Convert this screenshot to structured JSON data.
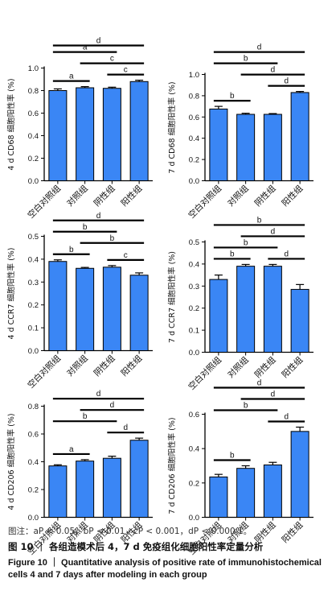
{
  "chart_data": [
    {
      "type": "bar",
      "ylabel": "4 d CD68 细胞阳性率 (%)",
      "categories": [
        "空白对照组",
        "对照组",
        "阴性组",
        "阳性组"
      ],
      "values": [
        0.8,
        0.825,
        0.82,
        0.88
      ],
      "errors": [
        0.015,
        0.01,
        0.01,
        0.012
      ],
      "ylim": [
        0,
        1.0
      ],
      "yticks": [
        "0.0",
        "0.2",
        "0.4",
        "0.6",
        "0.8",
        "1.0"
      ],
      "brackets": [
        {
          "from": 0,
          "to": 1,
          "label": "a"
        },
        {
          "from": 2,
          "to": 3,
          "label": "c"
        },
        {
          "from": 1,
          "to": 3,
          "label": "c"
        },
        {
          "from": 0,
          "to": 2,
          "label": "a"
        },
        {
          "from": 0,
          "to": 3,
          "label": "d"
        }
      ]
    },
    {
      "type": "bar",
      "ylabel": "7 d CD68 细胞阳性率 (%)",
      "categories": [
        "空白对照组",
        "对照组",
        "阴性组",
        "阳性组"
      ],
      "values": [
        0.675,
        0.625,
        0.625,
        0.83
      ],
      "errors": [
        0.025,
        0.01,
        0.007,
        0.01
      ],
      "ylim": [
        0,
        1.0
      ],
      "yticks": [
        "0.0",
        "0.2",
        "0.4",
        "0.6",
        "0.8",
        "1.0"
      ],
      "brackets": [
        {
          "from": 0,
          "to": 1,
          "label": "b"
        },
        {
          "from": 2,
          "to": 3,
          "label": "d"
        },
        {
          "from": 1,
          "to": 3,
          "label": "d"
        },
        {
          "from": 0,
          "to": 2,
          "label": "b"
        },
        {
          "from": 0,
          "to": 3,
          "label": "d"
        }
      ]
    },
    {
      "type": "bar",
      "ylabel": "4 d CCR7 细胞阳性率 (%)",
      "categories": [
        "空白对照组",
        "对照组",
        "阴性组",
        "阳性组"
      ],
      "values": [
        0.39,
        0.36,
        0.365,
        0.33
      ],
      "errors": [
        0.007,
        0.004,
        0.007,
        0.01
      ],
      "ylim": [
        0,
        0.5
      ],
      "yticks": [
        "0.0",
        "0.1",
        "0.2",
        "0.3",
        "0.4",
        "0.5"
      ],
      "brackets": [
        {
          "from": 0,
          "to": 1,
          "label": "b"
        },
        {
          "from": 2,
          "to": 3,
          "label": "c"
        },
        {
          "from": 1,
          "to": 3,
          "label": "b"
        },
        {
          "from": 0,
          "to": 2,
          "label": "b"
        },
        {
          "from": 0,
          "to": 3,
          "label": "d"
        }
      ]
    },
    {
      "type": "bar",
      "ylabel": "7 d CCR7 细胞阳性率 (%)",
      "categories": [
        "空白对照组",
        "对照组",
        "阴性组",
        "阳性组"
      ],
      "values": [
        0.33,
        0.39,
        0.39,
        0.285
      ],
      "errors": [
        0.02,
        0.008,
        0.008,
        0.022
      ],
      "ylim": [
        0,
        0.5
      ],
      "yticks": [
        "0.0",
        "0.1",
        "0.2",
        "0.3",
        "0.4",
        "0.5"
      ],
      "brackets": [
        {
          "from": 0,
          "to": 1,
          "label": "b"
        },
        {
          "from": 2,
          "to": 3,
          "label": "d"
        },
        {
          "from": 0,
          "to": 2,
          "label": "b"
        },
        {
          "from": 1,
          "to": 3,
          "label": "d"
        },
        {
          "from": 0,
          "to": 3,
          "label": "b"
        }
      ]
    },
    {
      "type": "bar",
      "ylabel": "4 d CD206 细胞阳性率 (%)",
      "categories": [
        "空白对照组",
        "对照组",
        "阴性组",
        "阳性组"
      ],
      "values": [
        0.37,
        0.405,
        0.425,
        0.555
      ],
      "errors": [
        0.008,
        0.01,
        0.015,
        0.015
      ],
      "ylim": [
        0,
        0.8
      ],
      "yticks": [
        "0.0",
        "0.2",
        "0.4",
        "0.6",
        "0.8"
      ],
      "brackets": [
        {
          "from": 0,
          "to": 1,
          "label": "a"
        },
        {
          "from": 0,
          "to": 2,
          "label": "b"
        },
        {
          "from": 2,
          "to": 3,
          "label": "d"
        },
        {
          "from": 1,
          "to": 3,
          "label": "d"
        },
        {
          "from": 0,
          "to": 3,
          "label": "d"
        }
      ]
    },
    {
      "type": "bar",
      "ylabel": "7 d CD206 细胞阳性率 (%)",
      "categories": [
        "空白对照组",
        "对照组",
        "阴性组",
        "阳性组"
      ],
      "values": [
        0.235,
        0.285,
        0.305,
        0.5
      ],
      "errors": [
        0.015,
        0.015,
        0.015,
        0.025
      ],
      "ylim": [
        0,
        0.6
      ],
      "yticks": [
        "0.0",
        "0.2",
        "0.4",
        "0.6"
      ],
      "brackets": [
        {
          "from": 0,
          "to": 1,
          "label": "b"
        },
        {
          "from": 0,
          "to": 2,
          "label": "b"
        },
        {
          "from": 2,
          "to": 3,
          "label": "d"
        },
        {
          "from": 1,
          "to": 3,
          "label": "d"
        },
        {
          "from": 0,
          "to": 3,
          "label": "d"
        }
      ]
    }
  ],
  "caption": {
    "note": "图注：aP < 0.05，bP < 0.01，cP < 0.001，dP < 0.000 1。",
    "title_cn": "图 10 ｜ 各组造模术后 4，7 d 免疫组化细胞阳性率定量分析",
    "title_en": "Figure 10 ｜ Quantitative analysis of positive rate of immunohistochemical cells 4 and 7 days after modeling in each group"
  },
  "colors": {
    "bar": "#3a86f5",
    "axis": "#000000"
  }
}
